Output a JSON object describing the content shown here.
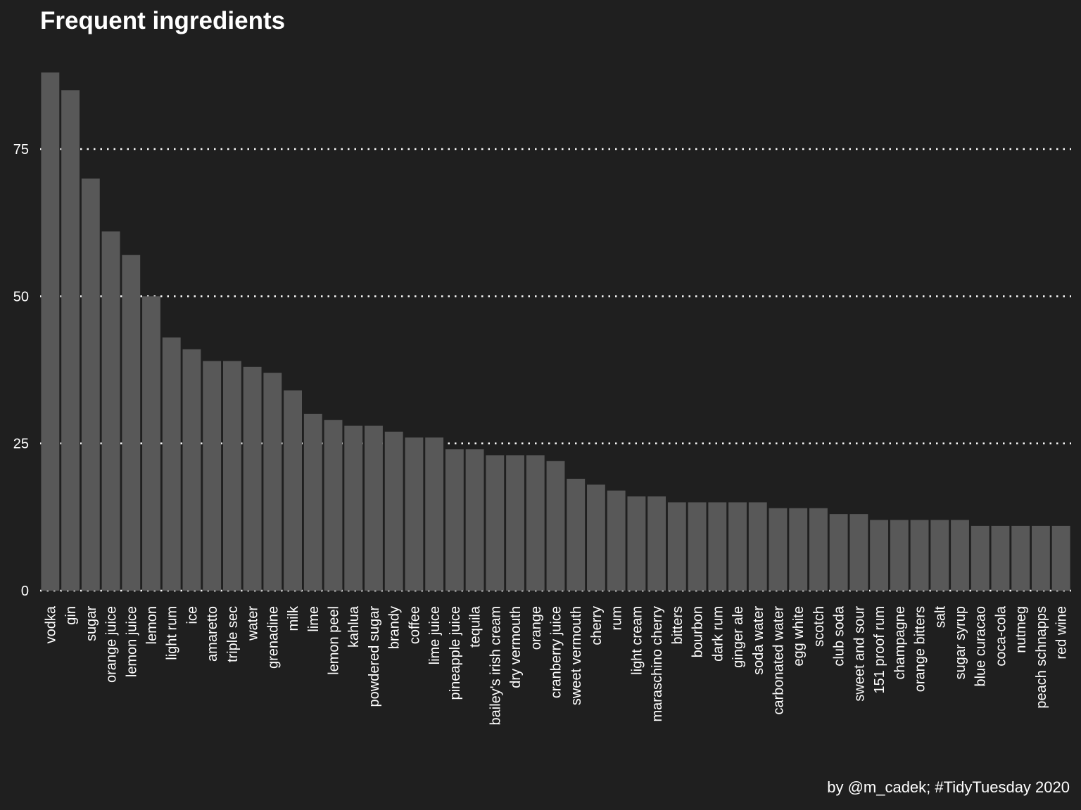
{
  "chart_data": {
    "type": "bar",
    "title": "Frequent ingredients",
    "caption": "by @m_cadek; #TidyTuesday 2020",
    "xlabel": "",
    "ylabel": "",
    "ylim": [
      0,
      90
    ],
    "yticks": [
      0,
      25,
      50,
      75
    ],
    "grid": "horizontal dotted",
    "categories": [
      "vodka",
      "gin",
      "sugar",
      "orange juice",
      "lemon juice",
      "lemon",
      "light rum",
      "ice",
      "amaretto",
      "triple sec",
      "water",
      "grenadine",
      "milk",
      "lime",
      "lemon peel",
      "kahlua",
      "powdered sugar",
      "brandy",
      "coffee",
      "lime juice",
      "pineapple juice",
      "tequila",
      "bailey's irish cream",
      "dry vermouth",
      "orange",
      "cranberry juice",
      "sweet vermouth",
      "cherry",
      "rum",
      "light cream",
      "maraschino cherry",
      "bitters",
      "bourbon",
      "dark rum",
      "ginger ale",
      "soda water",
      "carbonated water",
      "egg white",
      "scotch",
      "club soda",
      "sweet and sour",
      "151 proof rum",
      "champagne",
      "orange bitters",
      "salt",
      "sugar syrup",
      "blue curacao",
      "coca-cola",
      "nutmeg",
      "peach schnapps",
      "red wine"
    ],
    "values": [
      88,
      85,
      70,
      61,
      57,
      50,
      43,
      41,
      39,
      39,
      38,
      37,
      34,
      30,
      29,
      28,
      28,
      27,
      26,
      26,
      24,
      24,
      23,
      23,
      23,
      22,
      19,
      18,
      17,
      16,
      16,
      15,
      15,
      15,
      15,
      15,
      14,
      14,
      14,
      13,
      13,
      12,
      12,
      12,
      12,
      12,
      11,
      11,
      11,
      11,
      11
    ],
    "colors": {
      "background": "#1f1f1f",
      "bar": "#585858",
      "grid": "#ffffff",
      "text": "#ffffff"
    }
  }
}
